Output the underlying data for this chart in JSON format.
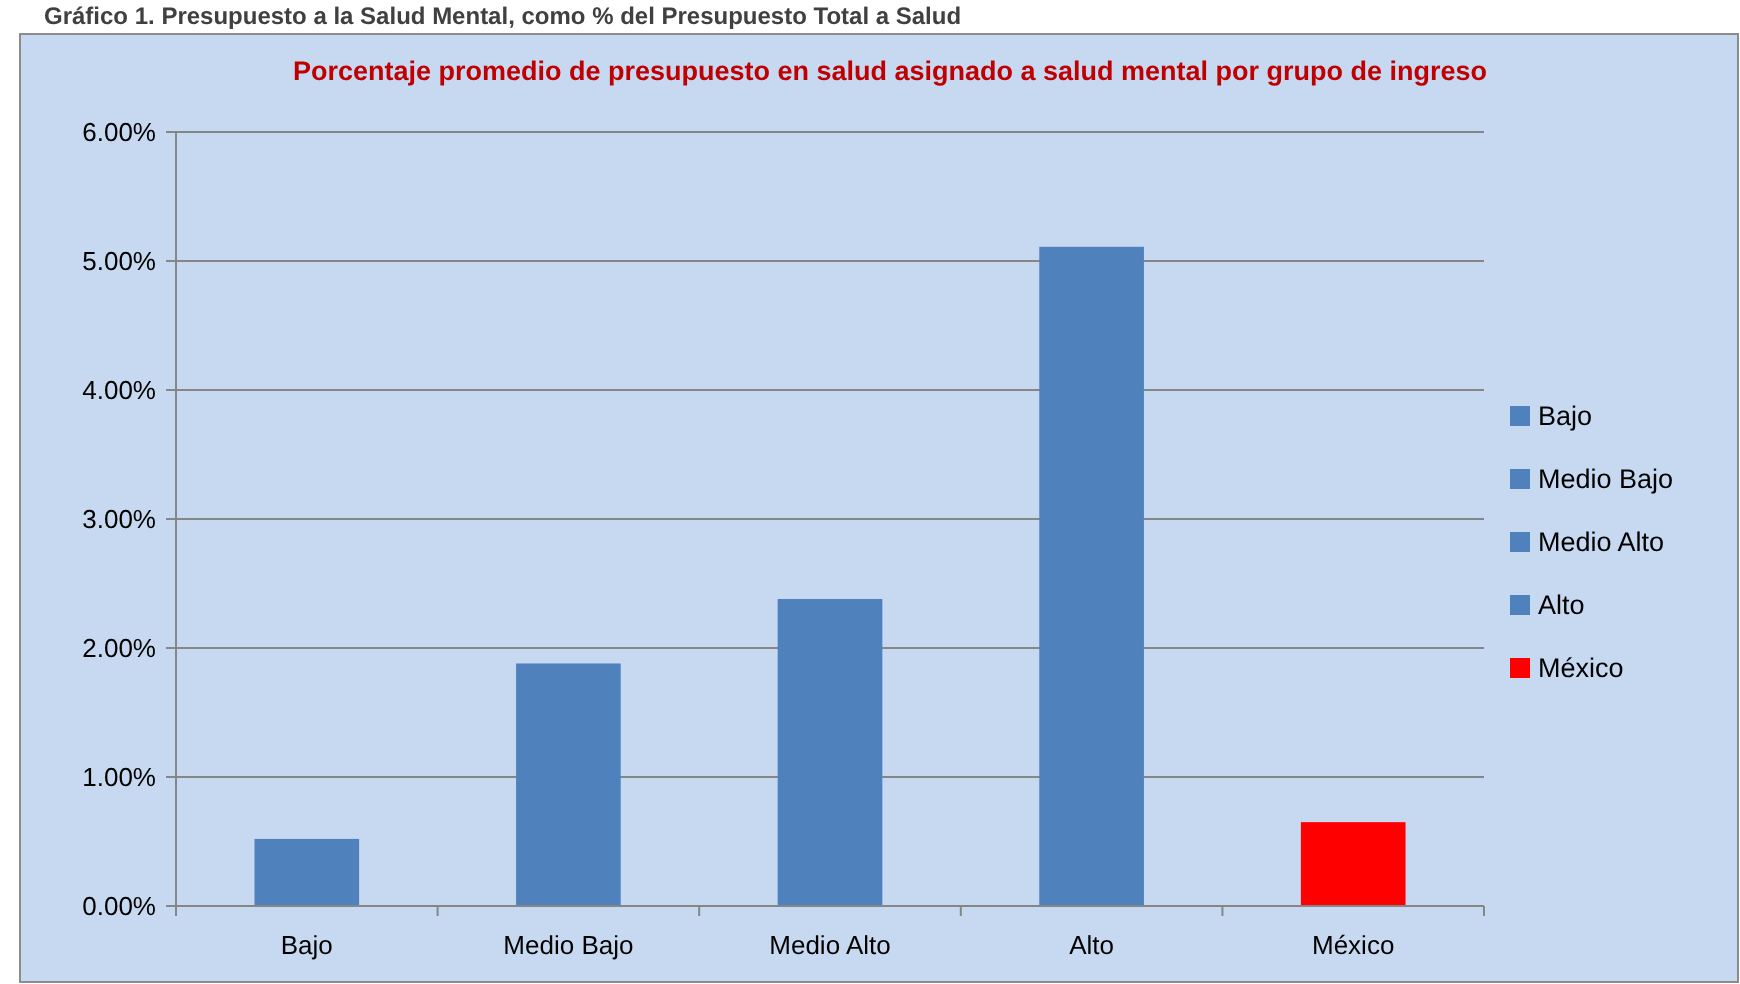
{
  "chart_data": {
    "type": "bar",
    "title": "Gráfico 1. Presupuesto a la Salud Mental, como % del Presupuesto Total a Salud",
    "subtitle": "Porcentaje promedio de presupuesto en salud asignado a salud mental por grupo de ingreso",
    "categories": [
      "Bajo",
      "Medio Bajo",
      "Medio Alto",
      "Alto",
      "México"
    ],
    "series": [
      {
        "name": "Bajo",
        "color": "#4f81bd",
        "values": [
          0.52,
          null,
          null,
          null,
          null
        ]
      },
      {
        "name": "Medio Bajo",
        "color": "#4f81bd",
        "values": [
          null,
          1.88,
          null,
          null,
          null
        ]
      },
      {
        "name": "Medio Alto",
        "color": "#4f81bd",
        "values": [
          null,
          null,
          2.38,
          null,
          null
        ]
      },
      {
        "name": "Alto",
        "color": "#4f81bd",
        "values": [
          null,
          null,
          null,
          5.11,
          null
        ]
      },
      {
        "name": "México",
        "color": "#ff0000",
        "values": [
          null,
          null,
          null,
          null,
          0.65
        ]
      }
    ],
    "ylim": [
      0,
      6
    ],
    "yticks": [
      {
        "value": 0,
        "label": "0.00%"
      },
      {
        "value": 1,
        "label": "1.00%"
      },
      {
        "value": 2,
        "label": "2.00%"
      },
      {
        "value": 3,
        "label": "3.00%"
      },
      {
        "value": 4,
        "label": "4.00%"
      },
      {
        "value": 5,
        "label": "5.00%"
      },
      {
        "value": 6,
        "label": "6.00%"
      }
    ],
    "grid": "y",
    "legend": "right"
  }
}
